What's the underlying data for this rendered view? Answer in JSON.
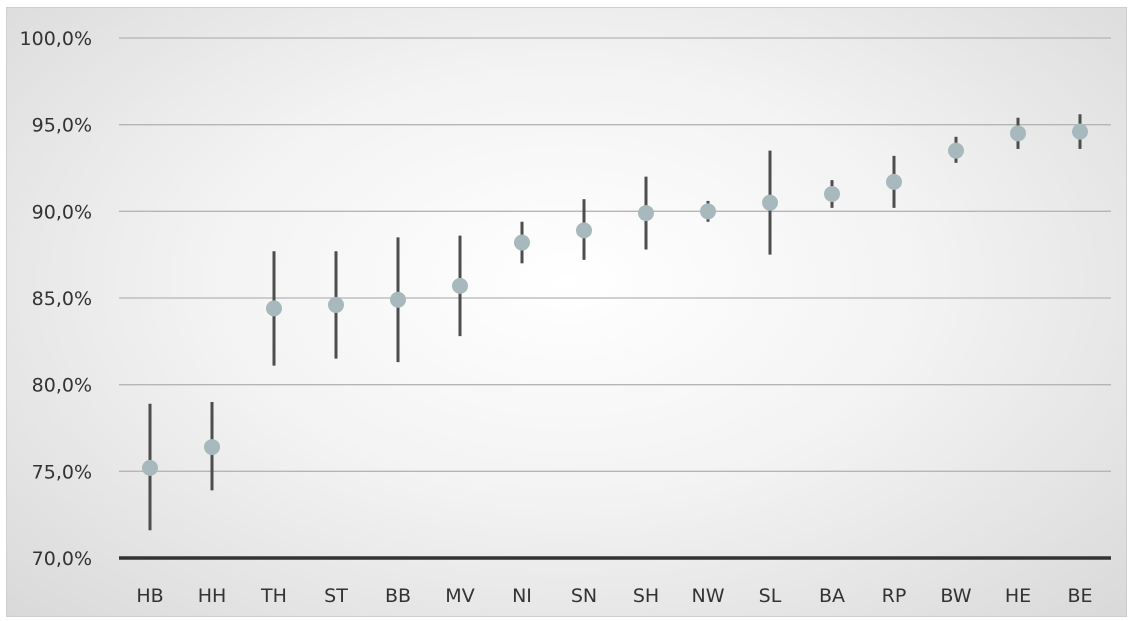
{
  "chart_data": {
    "type": "scatter",
    "title": "",
    "xlabel": "",
    "ylabel": "",
    "ylim": [
      70,
      100
    ],
    "y_ticks": [
      "70,0%",
      "75,0%",
      "80,0%",
      "85,0%",
      "90,0%",
      "95,0%",
      "100,0%"
    ],
    "y_tick_values": [
      70,
      75,
      80,
      85,
      90,
      95,
      100
    ],
    "categories": [
      "HB",
      "HH",
      "TH",
      "ST",
      "BB",
      "MV",
      "NI",
      "SN",
      "SH",
      "NW",
      "SL",
      "BA",
      "RP",
      "BW",
      "HE",
      "BE"
    ],
    "series": [
      {
        "values": [
          75.2,
          76.4,
          84.4,
          84.6,
          84.9,
          85.7,
          88.2,
          88.9,
          89.9,
          90.0,
          90.5,
          91.0,
          91.7,
          93.5,
          94.5,
          94.6
        ],
        "lower": [
          71.6,
          73.9,
          81.1,
          81.5,
          81.3,
          82.8,
          87.0,
          87.2,
          87.8,
          89.4,
          87.5,
          90.2,
          90.2,
          92.8,
          93.6,
          93.6
        ],
        "upper": [
          78.9,
          79.0,
          87.7,
          87.7,
          88.5,
          88.6,
          89.4,
          90.7,
          92.0,
          90.6,
          93.5,
          91.8,
          93.2,
          94.3,
          95.4,
          95.6
        ]
      }
    ],
    "grid": true,
    "legend": "none",
    "colors": {
      "marker": "#a7b9bd",
      "error_bar": "#4d4d4d",
      "gridline": "#b5b5b5",
      "axis": "#333333"
    }
  }
}
